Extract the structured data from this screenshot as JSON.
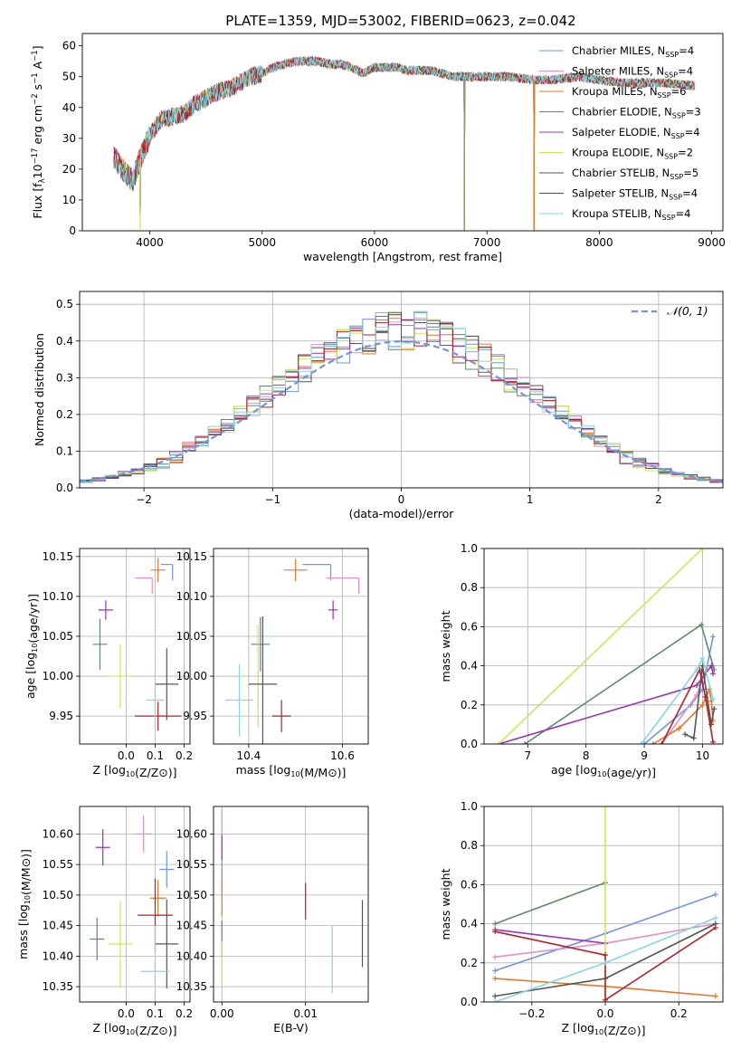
{
  "title": "PLATE=1359, MJD=53002, FIBERID=0623, z=0.042",
  "colors": {
    "Chabrier MILES": "#6f95e0",
    "Salpeter MILES": "#e58fc2",
    "Kroupa MILES": "#e2782b",
    "Chabrier ELODIE": "#5c8c68",
    "Salpeter ELODIE": "#9933b8",
    "Kroupa ELODIE": "#cde65a",
    "Chabrier STELIB": "#555555",
    "Salpeter STELIB": "#b41e26",
    "Kroupa STELIB": "#86d6de"
  },
  "chart_data": [
    {
      "type": "line",
      "id": "spectrum",
      "title": "PLATE=1359, MJD=53002, FIBERID=0623, z=0.042",
      "xlabel": "wavelength [Angstrom, rest frame]",
      "ylabel": "Flux [fλ10⁻¹⁷ erg cm⁻² s⁻¹ A⁻¹]",
      "xlim": [
        3400,
        9100
      ],
      "ylim": [
        0,
        64
      ],
      "xticks": [
        4000,
        5000,
        6000,
        7000,
        8000,
        9000
      ],
      "yticks": [
        0,
        10,
        20,
        30,
        40,
        50,
        60
      ],
      "legend_position": "top-right",
      "legend": [
        {
          "label": "Chabrier MILES, N",
          "sub": "SSP",
          "tail": "=4"
        },
        {
          "label": "Salpeter MILES, N",
          "sub": "SSP",
          "tail": "=4"
        },
        {
          "label": "Kroupa MILES, N",
          "sub": "SSP",
          "tail": "=6"
        },
        {
          "label": "Chabrier ELODIE, N",
          "sub": "SSP",
          "tail": "=3"
        },
        {
          "label": "Salpeter ELODIE, N",
          "sub": "SSP",
          "tail": "=4"
        },
        {
          "label": "Kroupa ELODIE, N",
          "sub": "SSP",
          "tail": "=2"
        },
        {
          "label": "Chabrier STELIB, N",
          "sub": "SSP",
          "tail": "=5"
        },
        {
          "label": "Salpeter STELIB, N",
          "sub": "SSP",
          "tail": "=4"
        },
        {
          "label": "Kroupa STELIB, N",
          "sub": "SSP",
          "tail": "=4"
        }
      ],
      "continuum_knots": [
        [
          3680,
          24
        ],
        [
          3760,
          20
        ],
        [
          3850,
          16
        ],
        [
          3900,
          22
        ],
        [
          4000,
          31
        ],
        [
          4100,
          36
        ],
        [
          4200,
          37
        ],
        [
          4300,
          38
        ],
        [
          4400,
          41
        ],
        [
          4500,
          43
        ],
        [
          4600,
          45
        ],
        [
          4700,
          46
        ],
        [
          4800,
          48
        ],
        [
          4900,
          50
        ],
        [
          5000,
          51
        ],
        [
          5100,
          53
        ],
        [
          5200,
          54
        ],
        [
          5300,
          55
        ],
        [
          5400,
          55
        ],
        [
          5500,
          55
        ],
        [
          5600,
          54
        ],
        [
          5700,
          54
        ],
        [
          5800,
          53
        ],
        [
          5900,
          51
        ],
        [
          6000,
          53
        ],
        [
          6100,
          53
        ],
        [
          6200,
          53
        ],
        [
          6300,
          52
        ],
        [
          6400,
          52
        ],
        [
          6500,
          52
        ],
        [
          6600,
          51
        ],
        [
          6700,
          50
        ],
        [
          6800,
          50
        ],
        [
          7000,
          50
        ],
        [
          7200,
          50
        ],
        [
          7400,
          49
        ],
        [
          7600,
          49
        ],
        [
          7800,
          50
        ],
        [
          8000,
          49
        ],
        [
          8200,
          48
        ],
        [
          8400,
          48
        ],
        [
          8600,
          48
        ],
        [
          8850,
          47
        ]
      ],
      "dropouts": [
        [
          3915,
          0
        ],
        [
          6800,
          0
        ],
        [
          7420,
          0
        ]
      ]
    },
    {
      "type": "step",
      "id": "residuals",
      "xlabel": "(data-model)/error",
      "ylabel": "Normed distribution",
      "xlim": [
        -2.5,
        2.5
      ],
      "ylim": [
        0,
        0.535
      ],
      "xticks": [
        -2,
        -1,
        0,
        1,
        2
      ],
      "yticks": [
        0.0,
        0.1,
        0.2,
        0.3,
        0.4,
        0.5
      ],
      "bin_width": 0.1,
      "legend": "𝒩(0, 1)",
      "normal_mean": 0,
      "normal_sd": 1
    },
    {
      "type": "errorbar",
      "id": "age-vs-Z",
      "xlabel": "Z [log₁₀(Z/Z⊙)]",
      "ylabel": "age  [log₁₀(age/yr)]",
      "xlim": [
        -0.16,
        0.22
      ],
      "ylim": [
        9.915,
        10.16
      ],
      "xticks": [
        0.0,
        0.1,
        0.2
      ],
      "yticks": [
        9.95,
        10.0,
        10.05,
        10.1,
        10.15
      ],
      "points": [
        {
          "series": "Chabrier MILES",
          "x": 0.14,
          "y": 10.14,
          "xerr": 0.02,
          "yerr": 0.0
        },
        {
          "series": "Salpeter MILES",
          "x": 0.06,
          "y": 10.123,
          "xerr": 0.03,
          "yerr": 0.0
        },
        {
          "series": "Kroupa MILES",
          "x": 0.11,
          "y": 10.133,
          "xerr": 0.025,
          "yerr": 0.015
        },
        {
          "series": "Chabrier ELODIE",
          "x": -0.09,
          "y": 10.04,
          "xerr": 0.025,
          "yerr": 0.032
        },
        {
          "series": "Salpeter ELODIE",
          "x": -0.07,
          "y": 10.083,
          "xerr": 0.025,
          "yerr": 0.012
        },
        {
          "series": "Kroupa ELODIE",
          "x": -0.02,
          "y": 10.0,
          "xerr": 0.04,
          "yerr": 0.04
        },
        {
          "series": "Chabrier STELIB",
          "x": 0.14,
          "y": 9.99,
          "xerr": 0.04,
          "yerr": 0.045
        },
        {
          "series": "Salpeter STELIB",
          "x": 0.11,
          "y": 9.95,
          "xerr": 0.08,
          "yerr": 0.018
        },
        {
          "series": "Kroupa STELIB",
          "x": 0.1,
          "y": 9.97,
          "xerr": 0.03,
          "yerr": 0.035
        }
      ]
    },
    {
      "type": "errorbar",
      "id": "age-vs-mass",
      "xlabel": "mass [log₁₀(M/M⊙)]",
      "ylabel": "",
      "xlim": [
        10.325,
        10.655
      ],
      "ylim": [
        9.915,
        10.16
      ],
      "xticks": [
        10.4,
        10.6
      ],
      "yticks": [
        9.95,
        10.0,
        10.05,
        10.1,
        10.15
      ],
      "points": [
        {
          "series": "Chabrier MILES",
          "x": 10.545,
          "y": 10.14,
          "xerr": 0.03,
          "yerr": 0.0
        },
        {
          "series": "Salpeter MILES",
          "x": 10.6,
          "y": 10.123,
          "xerr": 0.035,
          "yerr": 0.0
        },
        {
          "series": "Kroupa MILES",
          "x": 10.5,
          "y": 10.133,
          "xerr": 0.025,
          "yerr": 0.014
        },
        {
          "series": "Chabrier ELODIE",
          "x": 10.425,
          "y": 10.04,
          "xerr": 0.02,
          "yerr": 0.034
        },
        {
          "series": "Salpeter ELODIE",
          "x": 10.58,
          "y": 10.083,
          "xerr": 0.01,
          "yerr": 0.012
        },
        {
          "series": "Kroupa ELODIE",
          "x": 10.42,
          "y": 10.0,
          "xerr": 0.0,
          "yerr": 0.065
        },
        {
          "series": "Chabrier STELIB",
          "x": 10.43,
          "y": 9.99,
          "xerr": 0.03,
          "yerr": 0.085
        },
        {
          "series": "Salpeter STELIB",
          "x": 10.47,
          "y": 9.95,
          "xerr": 0.02,
          "yerr": 0.02
        },
        {
          "series": "Kroupa STELIB",
          "x": 10.38,
          "y": 9.97,
          "xerr": 0.03,
          "yerr": 0.045
        }
      ]
    },
    {
      "type": "line",
      "id": "massweight-vs-age",
      "xlabel": "age  [log₁₀(age/yr)]",
      "ylabel": "mass weight",
      "xlim": [
        6.25,
        10.35
      ],
      "ylim": [
        0,
        1.0
      ],
      "xticks": [
        7,
        8,
        9,
        10
      ],
      "yticks": [
        0.0,
        0.2,
        0.4,
        0.6,
        0.8,
        1.0
      ],
      "series": [
        {
          "name": "Chabrier MILES",
          "x": [
            9.0,
            9.8,
            10.0,
            10.18
          ],
          "y": [
            0.0,
            0.2,
            0.28,
            0.55
          ]
        },
        {
          "name": "Salpeter MILES",
          "x": [
            9.3,
            9.9,
            10.05,
            10.18
          ],
          "y": [
            0.0,
            0.25,
            0.37,
            0.4
          ]
        },
        {
          "name": "Kroupa MILES",
          "x": [
            9.15,
            9.6,
            10.0,
            10.12,
            10.15,
            10.18
          ],
          "y": [
            0.0,
            0.08,
            0.2,
            0.28,
            0.22,
            0.12
          ]
        },
        {
          "name": "Chabrier ELODIE",
          "x": [
            6.95,
            9.98,
            10.2
          ],
          "y": [
            0.0,
            0.61,
            0.38
          ]
        },
        {
          "name": "Salpeter ELODIE",
          "x": [
            6.5,
            9.9,
            10.15,
            10.18
          ],
          "y": [
            0.0,
            0.3,
            0.4,
            0.36
          ]
        },
        {
          "name": "Kroupa ELODIE",
          "x": [
            6.5,
            10.0
          ],
          "y": [
            0.0,
            1.0
          ]
        },
        {
          "name": "Chabrier STELIB",
          "x": [
            9.7,
            9.85,
            10.0,
            10.15,
            10.2
          ],
          "y": [
            0.05,
            0.03,
            0.4,
            0.1,
            0.18
          ]
        },
        {
          "name": "Salpeter STELIB",
          "x": [
            9.3,
            9.95,
            10.05,
            10.18
          ],
          "y": [
            0.0,
            0.38,
            0.24,
            0.01
          ]
        },
        {
          "name": "Kroupa STELIB",
          "x": [
            8.95,
            9.9,
            10.0,
            10.18
          ],
          "y": [
            0.0,
            0.38,
            0.44,
            0.23
          ]
        }
      ]
    },
    {
      "type": "errorbar",
      "id": "mass-vs-Z",
      "xlabel": "Z [log₁₀(Z/Z⊙)]",
      "ylabel": "mass [log₁₀(M/M⊙)]",
      "xlim": [
        -0.16,
        0.22
      ],
      "ylim": [
        10.325,
        10.645
      ],
      "xticks": [
        0.0,
        0.1,
        0.2
      ],
      "yticks": [
        10.35,
        10.4,
        10.45,
        10.5,
        10.55,
        10.6
      ],
      "points": [
        {
          "series": "Chabrier MILES",
          "x": 0.14,
          "y": 10.542,
          "xerr": 0.025,
          "yerr": 0.03
        },
        {
          "series": "Salpeter MILES",
          "x": 0.06,
          "y": 10.6,
          "xerr": 0.03,
          "yerr": 0.03
        },
        {
          "series": "Kroupa MILES",
          "x": 0.11,
          "y": 10.495,
          "xerr": 0.028,
          "yerr": 0.03
        },
        {
          "series": "Chabrier ELODIE",
          "x": -0.1,
          "y": 10.428,
          "xerr": 0.025,
          "yerr": 0.035
        },
        {
          "series": "Salpeter ELODIE",
          "x": -0.08,
          "y": 10.578,
          "xerr": 0.025,
          "yerr": 0.03
        },
        {
          "series": "Kroupa ELODIE",
          "x": -0.02,
          "y": 10.42,
          "xerr": 0.04,
          "yerr": 0.07
        },
        {
          "series": "Chabrier STELIB",
          "x": 0.14,
          "y": 10.42,
          "xerr": 0.04,
          "yerr": 0.073
        },
        {
          "series": "Salpeter STELIB",
          "x": 0.1,
          "y": 10.467,
          "xerr": 0.06,
          "yerr": 0.06
        },
        {
          "series": "Kroupa STELIB",
          "x": 0.1,
          "y": 10.375,
          "xerr": 0.05,
          "yerr": 0.075
        }
      ]
    },
    {
      "type": "errorbar",
      "id": "mass-vs-ebv",
      "xlabel": "E(B-V)",
      "ylabel": "",
      "xlim": [
        -0.001,
        0.0175
      ],
      "ylim": [
        10.325,
        10.645
      ],
      "xticks": [
        0.0,
        0.01
      ],
      "yticks": [
        10.35,
        10.4,
        10.45,
        10.5,
        10.55,
        10.6
      ],
      "points": [
        {
          "series": "Chabrier MILES",
          "x": 0.0,
          "y": 10.542,
          "xerr": 0,
          "yerr": 0.03
        },
        {
          "series": "Salpeter MILES",
          "x": 0.0,
          "y": 10.6,
          "xerr": 0,
          "yerr": 0.04
        },
        {
          "series": "Kroupa MILES",
          "x": 0.0,
          "y": 10.495,
          "xerr": 0,
          "yerr": 0.03
        },
        {
          "series": "Chabrier ELODIE",
          "x": 0.0,
          "y": 10.428,
          "xerr": 0,
          "yerr": 0.03
        },
        {
          "series": "Salpeter ELODIE",
          "x": 0.0,
          "y": 10.578,
          "xerr": 0,
          "yerr": 0.02
        },
        {
          "series": "Kroupa ELODIE",
          "x": 0.0,
          "y": 10.39,
          "xerr": 0,
          "yerr": 0.035
        },
        {
          "series": "Chabrier STELIB",
          "x": 0.0168,
          "y": 10.437,
          "xerr": 0,
          "yerr": 0.055
        },
        {
          "series": "Salpeter STELIB",
          "x": 0.01,
          "y": 10.49,
          "xerr": 0,
          "yerr": 0.03
        },
        {
          "series": "Kroupa STELIB",
          "x": 0.0132,
          "y": 10.395,
          "xerr": 0,
          "yerr": 0.055
        }
      ]
    },
    {
      "type": "line",
      "id": "massweight-vs-Z",
      "xlabel": "Z [log₁₀(Z/Z⊙)]",
      "ylabel": "mass weight",
      "xlim": [
        -0.33,
        0.32
      ],
      "ylim": [
        0,
        1.0
      ],
      "xticks": [
        -0.2,
        0.0,
        0.2
      ],
      "yticks": [
        0.0,
        0.2,
        0.4,
        0.6,
        0.8,
        1.0
      ],
      "series": [
        {
          "name": "Chabrier MILES",
          "x": [
            -0.3,
            0.0,
            0.3
          ],
          "y": [
            0.16,
            0.35,
            0.55
          ]
        },
        {
          "name": "Salpeter MILES",
          "x": [
            -0.3,
            0.0,
            0.3
          ],
          "y": [
            0.23,
            0.3,
            0.4
          ]
        },
        {
          "name": "Kroupa MILES",
          "x": [
            -0.3,
            0.0,
            0.3
          ],
          "y": [
            0.12,
            0.08,
            0.03
          ]
        },
        {
          "name": "Chabrier ELODIE",
          "x": [
            -0.3,
            0.0
          ],
          "y": [
            0.4,
            0.61
          ]
        },
        {
          "name": "Salpeter ELODIE",
          "x": [
            -0.3,
            0.0
          ],
          "y": [
            0.37,
            0.3
          ]
        },
        {
          "name": "Kroupa ELODIE",
          "x": [
            0.0,
            0.0
          ],
          "y": [
            0.0,
            1.0
          ]
        },
        {
          "name": "Chabrier STELIB",
          "x": [
            -0.3,
            0.0,
            0.3
          ],
          "y": [
            0.03,
            0.12,
            0.4
          ]
        },
        {
          "name": "Salpeter STELIB",
          "x": [
            -0.3,
            0.0,
            0.0,
            0.3
          ],
          "y": [
            0.36,
            0.24,
            0.01,
            0.38
          ]
        },
        {
          "name": "Kroupa STELIB",
          "x": [
            -0.3,
            0.0,
            0.3
          ],
          "y": [
            0.0,
            0.2,
            0.43
          ]
        }
      ]
    }
  ]
}
